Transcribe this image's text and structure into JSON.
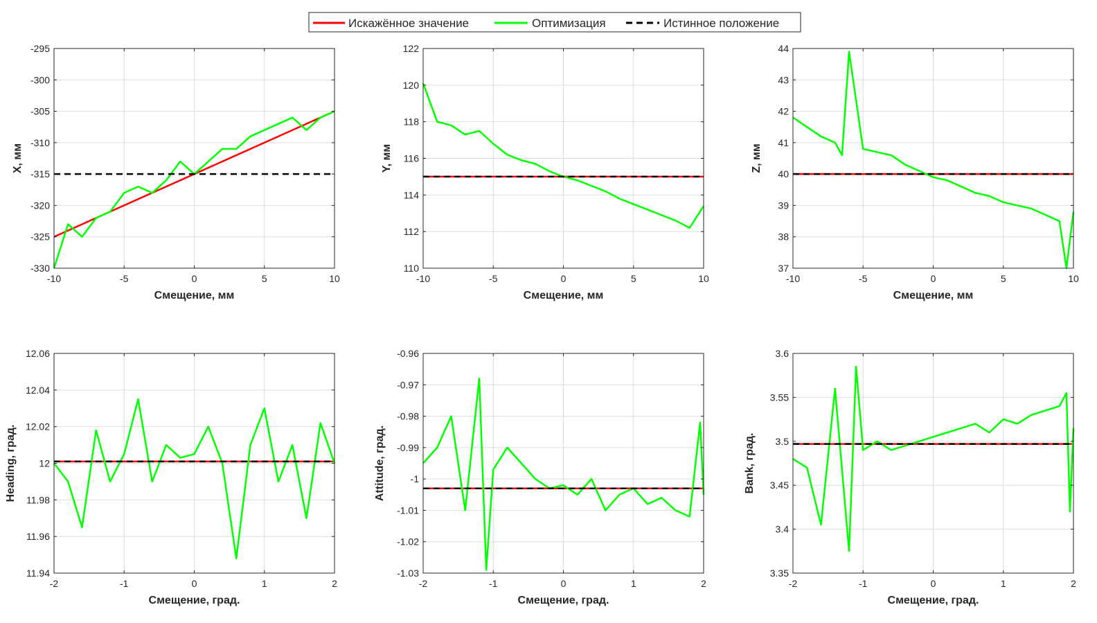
{
  "legend": {
    "placement": "top-center",
    "entries": [
      {
        "label": "Искажённое значение",
        "color": "#ff0000",
        "style": "solid"
      },
      {
        "label": "Оптимизация",
        "color": "#00ff00",
        "style": "solid"
      },
      {
        "label": "Истинное положение",
        "color": "#000000",
        "style": "dashed"
      }
    ]
  },
  "chart_data": [
    {
      "type": "line",
      "xlabel": "Смещение, мм",
      "ylabel": "X, мм",
      "xlim": [
        -10,
        10
      ],
      "ylim": [
        -330,
        -295
      ],
      "xticks": [
        -10,
        -5,
        0,
        5,
        10
      ],
      "yticks": [
        -330,
        -325,
        -320,
        -315,
        -310,
        -305,
        -300,
        -295
      ],
      "grid": true,
      "distorted": {
        "x": [
          -10,
          10
        ],
        "y": [
          -325,
          -305
        ]
      },
      "true_value": -315,
      "optimization": {
        "x": [
          -10,
          -9,
          -8,
          -7,
          -6,
          -5,
          -4,
          -3,
          -2,
          -1,
          0,
          1,
          2,
          3,
          4,
          5,
          6,
          7,
          8,
          9,
          10
        ],
        "y": [
          -330,
          -323,
          -325,
          -322,
          -321,
          -318,
          -317,
          -318,
          -316,
          -313,
          -315,
          -313,
          -311,
          -311,
          -309,
          -308,
          -307,
          -306,
          -308,
          -306,
          -305
        ]
      }
    },
    {
      "type": "line",
      "xlabel": "Смещение, мм",
      "ylabel": "Y, мм",
      "xlim": [
        -10,
        10
      ],
      "ylim": [
        110,
        122
      ],
      "xticks": [
        -10,
        -5,
        0,
        5,
        10
      ],
      "yticks": [
        110,
        112,
        114,
        116,
        118,
        120,
        122
      ],
      "grid": true,
      "distorted": {
        "x": [
          -10,
          10
        ],
        "y": [
          115,
          115
        ]
      },
      "true_value": 115,
      "optimization": {
        "x": [
          -10,
          -9,
          -8,
          -7,
          -6,
          -5,
          -4,
          -3,
          -2,
          -1,
          0,
          1,
          2,
          3,
          4,
          5,
          6,
          7,
          8,
          9,
          10
        ],
        "y": [
          120.1,
          118.0,
          117.8,
          117.3,
          117.5,
          116.8,
          116.2,
          115.9,
          115.7,
          115.3,
          115.0,
          114.8,
          114.5,
          114.2,
          113.8,
          113.5,
          113.2,
          112.9,
          112.6,
          112.2,
          113.4
        ]
      }
    },
    {
      "type": "line",
      "xlabel": "Смещение, мм",
      "ylabel": "Z, мм",
      "xlim": [
        -10,
        10
      ],
      "ylim": [
        37,
        44
      ],
      "xticks": [
        -10,
        -5,
        0,
        5,
        10
      ],
      "yticks": [
        37,
        38,
        39,
        40,
        41,
        42,
        43,
        44
      ],
      "grid": true,
      "distorted": {
        "x": [
          -10,
          10
        ],
        "y": [
          40,
          40
        ]
      },
      "true_value": 40,
      "optimization": {
        "x": [
          -10,
          -9,
          -8,
          -7,
          -6.5,
          -6,
          -5,
          -4,
          -3,
          -2,
          -1,
          0,
          1,
          2,
          3,
          4,
          5,
          6,
          7,
          8,
          9,
          9.5,
          10
        ],
        "y": [
          41.8,
          41.5,
          41.2,
          41.0,
          40.6,
          43.9,
          40.8,
          40.7,
          40.6,
          40.3,
          40.1,
          39.9,
          39.8,
          39.6,
          39.4,
          39.3,
          39.1,
          39.0,
          38.9,
          38.7,
          38.5,
          37.0,
          38.8
        ]
      }
    },
    {
      "type": "line",
      "xlabel": "Смещение, град.",
      "ylabel": "Heading, град.",
      "xlim": [
        -2,
        2
      ],
      "ylim": [
        11.94,
        12.06
      ],
      "xticks": [
        -2,
        -1,
        0,
        1,
        2
      ],
      "yticks": [
        11.94,
        11.96,
        11.98,
        12,
        12.02,
        12.04,
        12.06
      ],
      "grid": true,
      "distorted": {
        "x": [
          -2,
          2
        ],
        "y": [
          12.001,
          12.001
        ]
      },
      "true_value": 12.001,
      "optimization": {
        "x": [
          -2,
          -1.8,
          -1.6,
          -1.4,
          -1.2,
          -1,
          -0.8,
          -0.6,
          -0.4,
          -0.2,
          0,
          0.2,
          0.4,
          0.6,
          0.8,
          1,
          1.2,
          1.4,
          1.6,
          1.8,
          2
        ],
        "y": [
          12.0,
          11.99,
          11.965,
          12.018,
          11.99,
          12.005,
          12.035,
          11.99,
          12.01,
          12.003,
          12.005,
          12.02,
          12.0,
          11.948,
          12.01,
          12.03,
          11.99,
          12.01,
          11.97,
          12.022,
          12.0
        ]
      }
    },
    {
      "type": "line",
      "xlabel": "Смещение, град.",
      "ylabel": "Attitude, град.",
      "xlim": [
        -2,
        2
      ],
      "ylim": [
        -1.03,
        -0.96
      ],
      "xticks": [
        -2,
        -1,
        0,
        1,
        2
      ],
      "yticks": [
        -1.03,
        -1.02,
        -1.01,
        -1,
        -0.99,
        -0.98,
        -0.97,
        -0.96
      ],
      "grid": true,
      "distorted": {
        "x": [
          -2,
          2
        ],
        "y": [
          -1.003,
          -1.003
        ]
      },
      "true_value": -1.003,
      "optimization": {
        "x": [
          -2,
          -1.8,
          -1.6,
          -1.4,
          -1.2,
          -1.1,
          -1,
          -0.8,
          -0.6,
          -0.4,
          -0.2,
          0,
          0.2,
          0.4,
          0.6,
          0.8,
          1,
          1.2,
          1.4,
          1.6,
          1.8,
          1.95,
          2
        ],
        "y": [
          -0.995,
          -0.99,
          -0.98,
          -1.01,
          -0.968,
          -1.029,
          -0.997,
          -0.99,
          -0.995,
          -1.0,
          -1.003,
          -1.002,
          -1.005,
          -1.0,
          -1.01,
          -1.005,
          -1.003,
          -1.008,
          -1.006,
          -1.01,
          -1.012,
          -0.982,
          -1.005
        ]
      }
    },
    {
      "type": "line",
      "xlabel": "Смещение, град.",
      "ylabel": "Bank, град.",
      "xlim": [
        -2,
        2
      ],
      "ylim": [
        3.35,
        3.6
      ],
      "xticks": [
        -2,
        -1,
        0,
        1,
        2
      ],
      "yticks": [
        3.35,
        3.4,
        3.45,
        3.5,
        3.55,
        3.6
      ],
      "grid": true,
      "distorted": {
        "x": [
          -2,
          2
        ],
        "y": [
          3.497,
          3.497
        ]
      },
      "true_value": 3.497,
      "optimization": {
        "x": [
          -2,
          -1.8,
          -1.6,
          -1.4,
          -1.2,
          -1.1,
          -1,
          -0.8,
          -0.6,
          -0.4,
          -0.2,
          0,
          0.2,
          0.4,
          0.6,
          0.8,
          1,
          1.2,
          1.4,
          1.6,
          1.8,
          1.9,
          1.95,
          2
        ],
        "y": [
          3.48,
          3.47,
          3.405,
          3.56,
          3.375,
          3.585,
          3.49,
          3.5,
          3.49,
          3.495,
          3.5,
          3.505,
          3.51,
          3.515,
          3.52,
          3.51,
          3.525,
          3.52,
          3.53,
          3.535,
          3.54,
          3.555,
          3.42,
          3.515
        ]
      }
    }
  ]
}
